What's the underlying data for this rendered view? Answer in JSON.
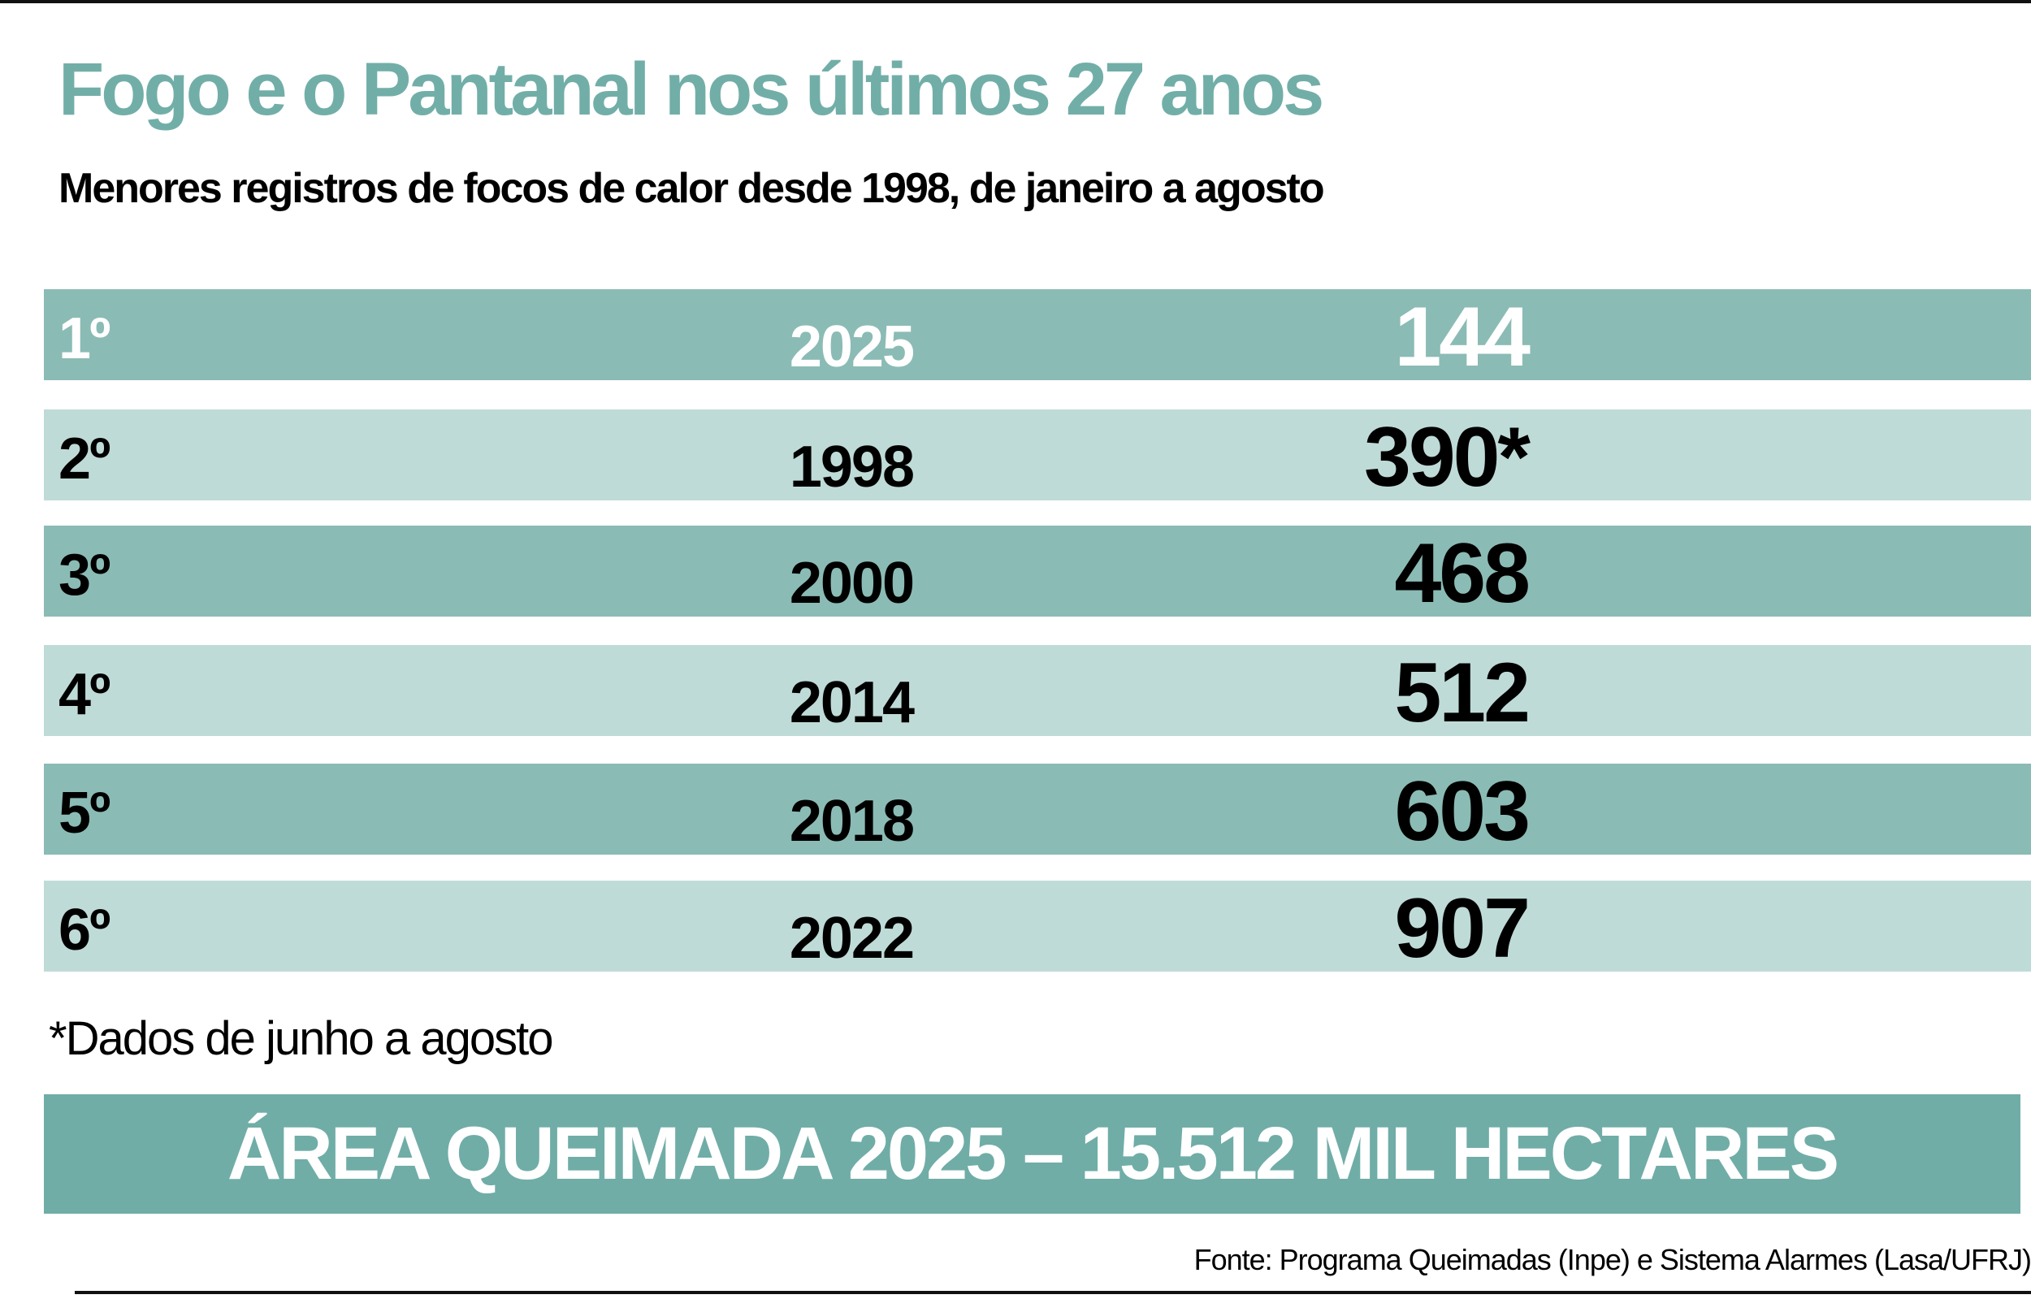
{
  "title": "Fogo e o Pantanal nos últimos 27 anos",
  "subtitle": "Menores registros de focos de calor desde 1998, de janeiro a agosto",
  "rows": [
    {
      "rank": "1º",
      "year": "2025",
      "value": "144"
    },
    {
      "rank": "2º",
      "year": "1998",
      "value": "390*"
    },
    {
      "rank": "3º",
      "year": "2000",
      "value": "468"
    },
    {
      "rank": "4º",
      "year": "2014",
      "value": "512"
    },
    {
      "rank": "5º",
      "year": "2018",
      "value": "603"
    },
    {
      "rank": "6º",
      "year": "2022",
      "value": "907"
    }
  ],
  "footnote": "*Dados de junho a agosto",
  "banner": "ÁREA QUEIMADA 2025 – 15.512 MIL HECTARES",
  "source": "Fonte: Programa Queimadas (Inpe) e Sistema Alarmes (Lasa/UFRJ)",
  "colors": {
    "accent": "#72aea8",
    "row_dark": "#8bbbb5",
    "row_light": "#bfdbd7",
    "banner": "#70ada7"
  }
}
